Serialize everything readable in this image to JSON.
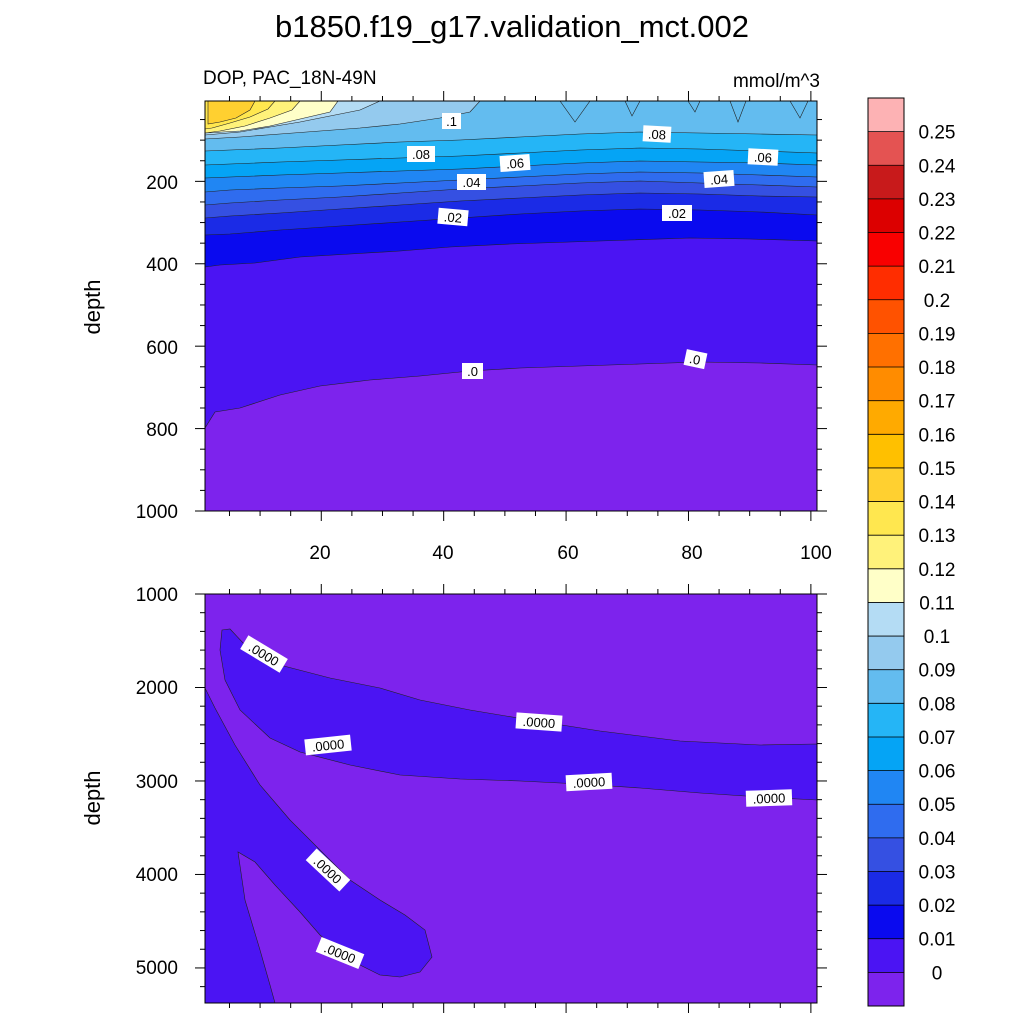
{
  "chart_data": [
    {
      "type": "contour",
      "panel": "top",
      "title": "b1850.f19_g17.validation_mct.002",
      "left_string": "DOP, PAC_18N-49N",
      "right_string": "mmol/m^3",
      "ylabel": "depth",
      "xlim": [
        1,
        101
      ],
      "ylim": [
        1000,
        5
      ],
      "x_ticks": [
        "20",
        "40",
        "60",
        "80",
        "100"
      ],
      "y_ticks": [
        "200",
        "400",
        "600",
        "800",
        "1000"
      ],
      "contour_labels": [
        ".1",
        ".08",
        ".08",
        ".06",
        ".06",
        ".04",
        ".04",
        ".02",
        ".02",
        ".0",
        ".0"
      ]
    },
    {
      "type": "contour",
      "panel": "bottom",
      "ylabel": "depth",
      "xlim": [
        1,
        101
      ],
      "ylim": [
        5375,
        1000
      ],
      "y_ticks": [
        "1000",
        "2000",
        "3000",
        "4000",
        "5000"
      ],
      "contour_labels": [
        ".0000",
        ".0000",
        ".0000",
        ".0000",
        ".0000",
        ".0000",
        ".0000"
      ]
    }
  ],
  "colorbar": {
    "labels": [
      "0.25",
      "0.24",
      "0.23",
      "0.22",
      "0.21",
      "0.2",
      "0.19",
      "0.18",
      "0.17",
      "0.16",
      "0.15",
      "0.14",
      "0.13",
      "0.12",
      "0.11",
      "0.1",
      "0.09",
      "0.08",
      "0.07",
      "0.06",
      "0.05",
      "0.04",
      "0.03",
      "0.02",
      "0.01",
      "0"
    ],
    "colors": [
      "#fdb2b4",
      "#e45352",
      "#c81a1b",
      "#dc0000",
      "#f90000",
      "#ff2d00",
      "#ff5200",
      "#ff7000",
      "#ff8c00",
      "#ffaa00",
      "#ffc000",
      "#ffd030",
      "#ffe74f",
      "#fff27a",
      "#ffffc8",
      "#b4dcf4",
      "#94caee",
      "#63bcef",
      "#25b5f6",
      "#05a4f5",
      "#2086f3",
      "#2f6cef",
      "#3550e2",
      "#1b2be6",
      "#0a0aef",
      "#4b14f3",
      "#7d23ed"
    ]
  }
}
